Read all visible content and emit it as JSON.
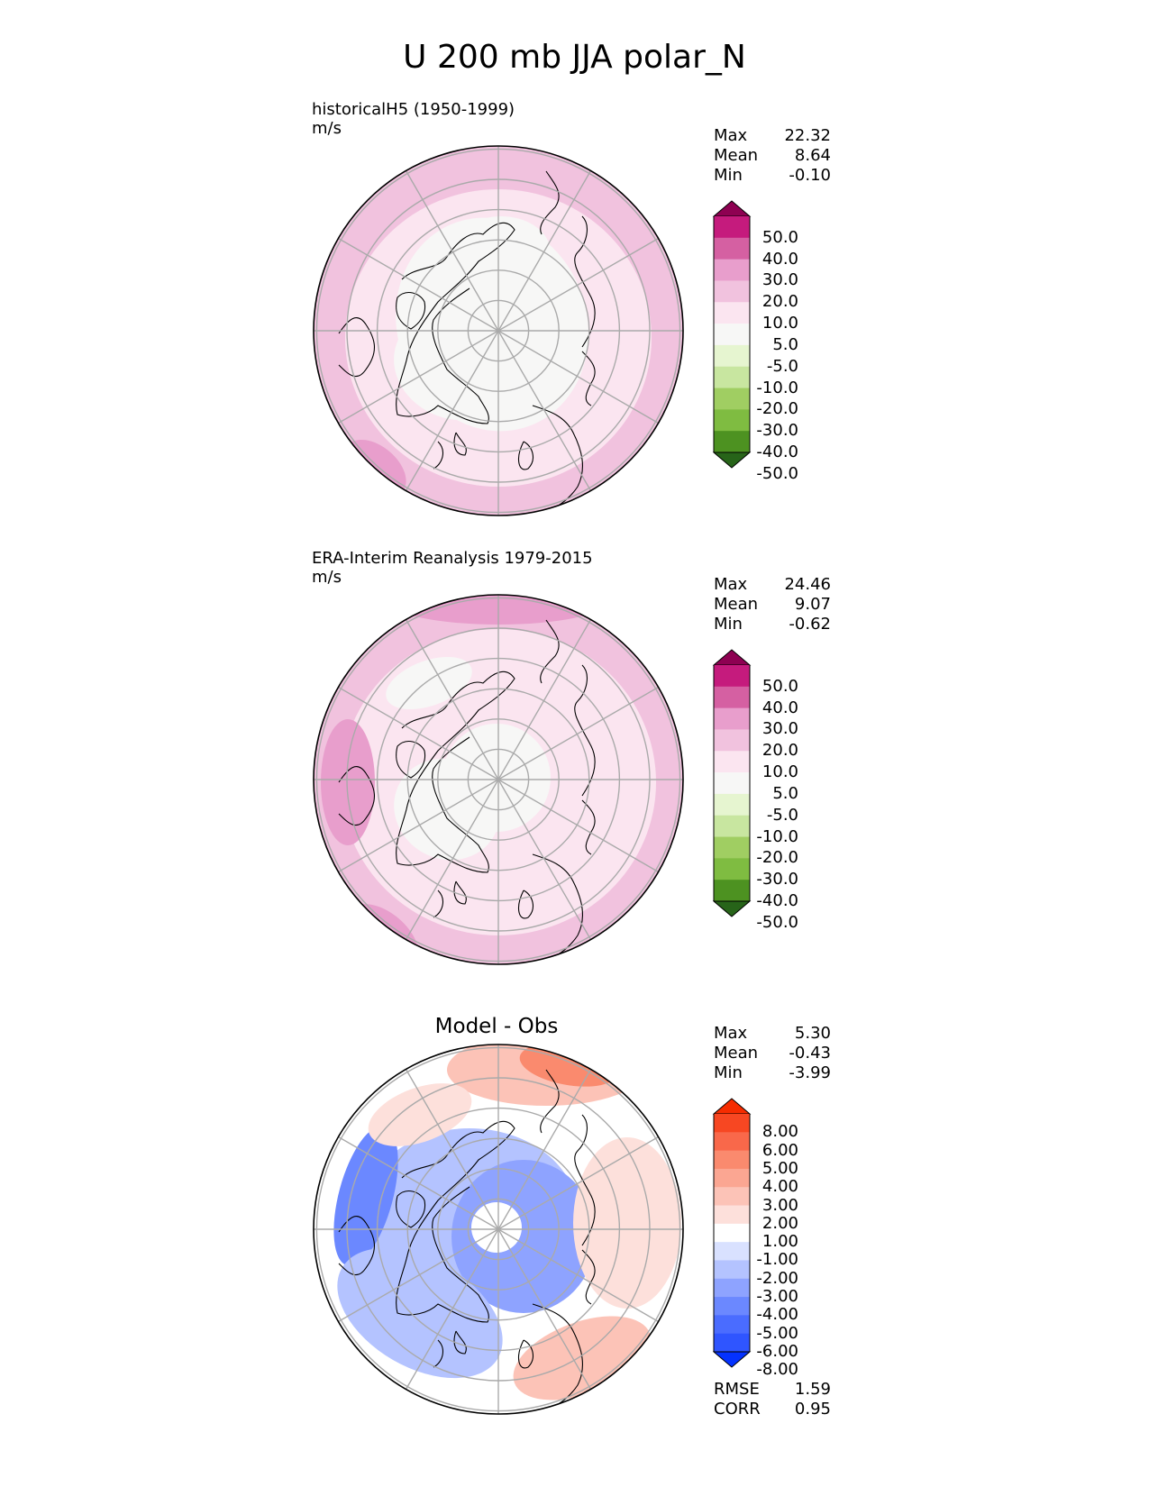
{
  "title": "U 200 mb JJA polar_N",
  "colors": {
    "pink_scale": [
      "#276419",
      "#4d9221",
      "#7fbc41",
      "#a0ce62",
      "#c8e6a0",
      "#e6f5d0",
      "#f7f7f6",
      "#fbe5f0",
      "#f1c2de",
      "#e89ecc",
      "#d560a2",
      "#c51b7d",
      "#8e0152"
    ],
    "diff_scale": [
      "#0432ff",
      "#2f55ff",
      "#4a6cff",
      "#6b88ff",
      "#8ea3ff",
      "#b4c3ff",
      "#d9e1ff",
      "#ffffff",
      "#fde0db",
      "#fcc3b7",
      "#fba692",
      "#fa8a6e",
      "#f9684a",
      "#f74722",
      "#f62c00"
    ],
    "coast": "#000000",
    "grid": "#aaaaaa"
  },
  "panels": [
    {
      "label": "historicalH5 (1950-1999)",
      "units": "m/s",
      "stats": [
        {
          "name": "Max",
          "value": "22.32"
        },
        {
          "name": "Mean",
          "value": "8.64"
        },
        {
          "name": "Min",
          "value": "-0.10"
        }
      ],
      "colorbar_labels": [
        "50.0",
        "40.0",
        "30.0",
        "20.0",
        "10.0",
        "5.0",
        "-5.0",
        "-10.0",
        "-20.0",
        "-30.0",
        "-40.0",
        "-50.0"
      ]
    },
    {
      "label": "ERA-Interim Reanalysis 1979-2015",
      "units": "m/s",
      "stats": [
        {
          "name": "Max",
          "value": "24.46"
        },
        {
          "name": "Mean",
          "value": "9.07"
        },
        {
          "name": "Min",
          "value": "-0.62"
        }
      ],
      "colorbar_labels": [
        "50.0",
        "40.0",
        "30.0",
        "20.0",
        "10.0",
        "5.0",
        "-5.0",
        "-10.0",
        "-20.0",
        "-30.0",
        "-40.0",
        "-50.0"
      ]
    },
    {
      "title": "Model - Obs",
      "stats": [
        {
          "name": "Max",
          "value": "5.30"
        },
        {
          "name": "Mean",
          "value": "-0.43"
        },
        {
          "name": "Min",
          "value": "-3.99"
        }
      ],
      "colorbar_labels": [
        "8.00",
        "6.00",
        "5.00",
        "4.00",
        "3.00",
        "2.00",
        "1.00",
        "-1.00",
        "-2.00",
        "-3.00",
        "-4.00",
        "-5.00",
        "-6.00",
        "-8.00"
      ],
      "metrics": [
        {
          "name": "RMSE",
          "value": "1.59"
        },
        {
          "name": "CORR",
          "value": "0.95"
        }
      ]
    }
  ],
  "chart_data": [
    {
      "type": "heatmap",
      "projection": "polar stereographic (north)",
      "title": "historicalH5 (1950-1999)",
      "units": "m/s",
      "summary": {
        "max": 22.32,
        "mean": 8.64,
        "min": -0.1
      },
      "levels": [
        -50,
        -40,
        -30,
        -20,
        -10,
        -5,
        5,
        10,
        20,
        30,
        40,
        50
      ]
    },
    {
      "type": "heatmap",
      "projection": "polar stereographic (north)",
      "title": "ERA-Interim Reanalysis 1979-2015",
      "units": "m/s",
      "summary": {
        "max": 24.46,
        "mean": 9.07,
        "min": -0.62
      },
      "levels": [
        -50,
        -40,
        -30,
        -20,
        -10,
        -5,
        5,
        10,
        20,
        30,
        40,
        50
      ]
    },
    {
      "type": "heatmap",
      "projection": "polar stereographic (north)",
      "title": "Model - Obs",
      "summary": {
        "max": 5.3,
        "mean": -0.43,
        "min": -3.99,
        "rmse": 1.59,
        "corr": 0.95
      },
      "levels": [
        -8,
        -6,
        -5,
        -4,
        -3,
        -2,
        -1,
        1,
        2,
        3,
        4,
        5,
        6,
        8
      ]
    }
  ]
}
